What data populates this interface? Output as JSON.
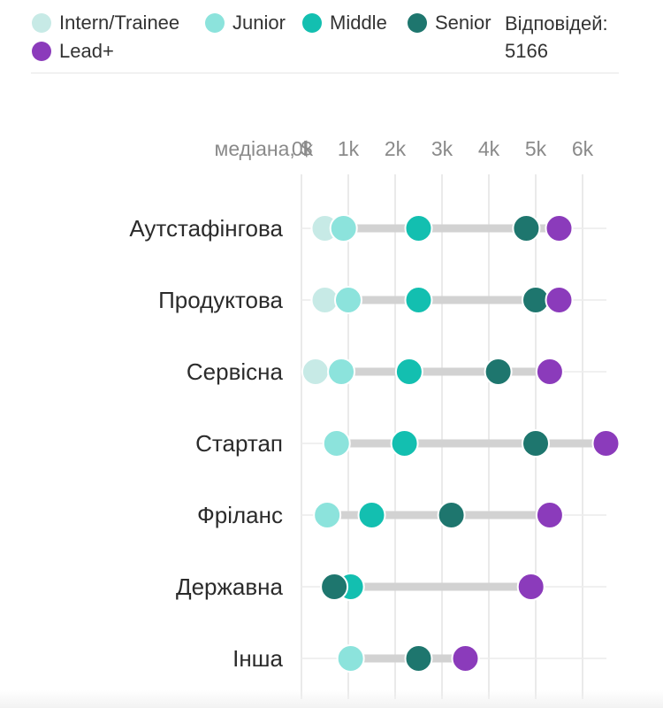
{
  "legend": {
    "items": [
      {
        "name": "Intern/Trainee",
        "color": "#c7eae6"
      },
      {
        "name": "Junior",
        "color": "#8ce3dc"
      },
      {
        "name": "Middle",
        "color": "#13bfb0"
      },
      {
        "name": "Senior",
        "color": "#1e766e"
      },
      {
        "name": "Lead+",
        "color": "#8b3bbb"
      }
    ],
    "responses_label": "Відповідей:",
    "responses_count": "5166"
  },
  "chart_data": {
    "type": "dot-range",
    "xlabel": "медіана, $",
    "xlim": [
      0,
      6500
    ],
    "xticks": [
      0,
      1000,
      2000,
      3000,
      4000,
      5000,
      6000
    ],
    "xtick_labels": [
      "0k",
      "1k",
      "2k",
      "3k",
      "4k",
      "5k",
      "6k"
    ],
    "grid": true,
    "legend_position": "top",
    "series_order": [
      "Intern/Trainee",
      "Junior",
      "Middle",
      "Senior",
      "Lead+"
    ],
    "categories": [
      "Аутстафінгова",
      "Продуктова",
      "Сервісна",
      "Стартап",
      "Фріланс",
      "Державна",
      "Інша"
    ],
    "series": [
      {
        "name": "Intern/Trainee",
        "values": [
          500,
          500,
          300,
          null,
          null,
          null,
          null
        ]
      },
      {
        "name": "Junior",
        "values": [
          900,
          1000,
          850,
          750,
          550,
          1050,
          1050
        ]
      },
      {
        "name": "Middle",
        "values": [
          2500,
          2500,
          2300,
          2200,
          1500,
          1050,
          null
        ]
      },
      {
        "name": "Senior",
        "values": [
          4800,
          5000,
          4200,
          5000,
          3200,
          700,
          2500
        ]
      },
      {
        "name": "Lead+",
        "values": [
          5500,
          5500,
          5300,
          6500,
          5300,
          4900,
          3500
        ]
      }
    ]
  }
}
